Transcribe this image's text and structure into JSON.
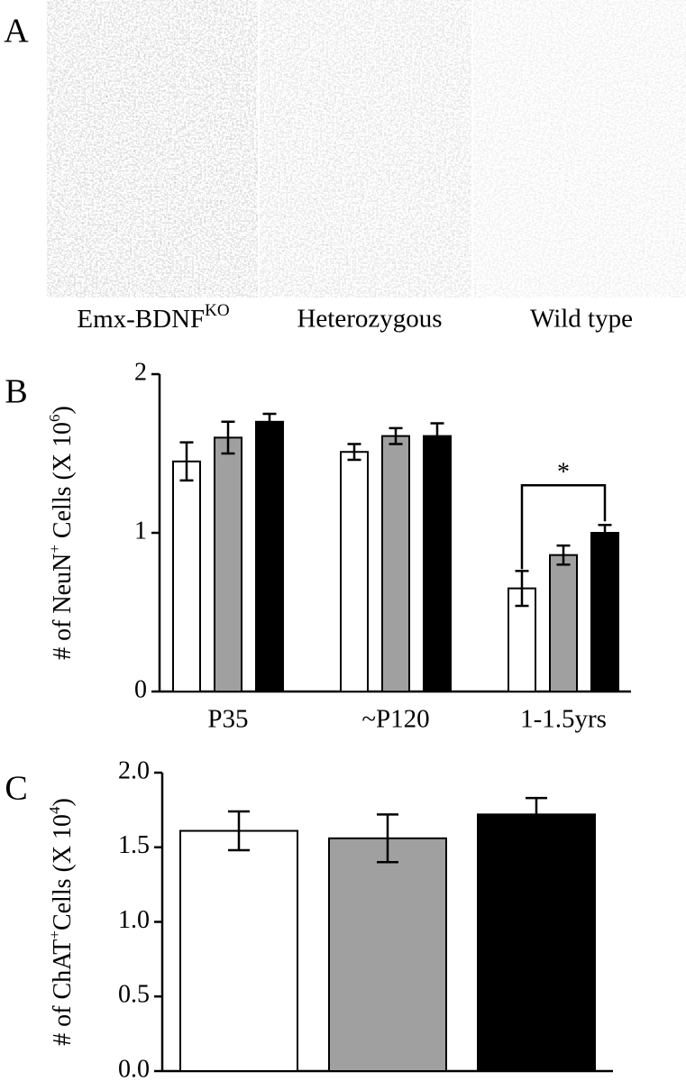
{
  "panel_letters": [
    "A",
    "B",
    "C"
  ],
  "panel_a": {
    "labels": [
      [
        "Emx-BDNF",
        "KO"
      ],
      [
        "Heterozygous"
      ],
      [
        "Wild type"
      ]
    ]
  },
  "chart_data": [
    {
      "type": "bar",
      "ylabel": [
        "# of NeuN",
        "+",
        " Cells (X 10",
        "6",
        ")"
      ],
      "categories": [
        "P35",
        "~P120",
        "1-1.5yrs"
      ],
      "series": [
        {
          "color": "#ffffff",
          "values": [
            1.45,
            1.51,
            0.65
          ],
          "errors": [
            0.12,
            0.05,
            0.11
          ]
        },
        {
          "color": "#a0a0a0",
          "values": [
            1.6,
            1.61,
            0.86
          ],
          "errors": [
            0.1,
            0.05,
            0.06
          ]
        },
        {
          "color": "#000000",
          "values": [
            1.7,
            1.61,
            1.0
          ],
          "errors": [
            0.05,
            0.08,
            0.05
          ]
        }
      ],
      "ylim": [
        0,
        2
      ],
      "yticks": [
        0,
        1,
        2
      ],
      "annotation": "*"
    },
    {
      "type": "bar",
      "ylabel": [
        "# of ChAT",
        "+",
        "Cells (X 10",
        "4",
        ")"
      ],
      "categories": [
        null,
        null,
        null
      ],
      "values": [
        1.61,
        1.56,
        1.72
      ],
      "errors": [
        0.13,
        0.16,
        0.11
      ],
      "colors": [
        "#ffffff",
        "#a0a0a0",
        "#000000"
      ],
      "ylim": [
        0,
        2
      ],
      "yticks": [
        {
          "value": 0,
          "label": "0.0"
        },
        0.5,
        {
          "value": 1,
          "label": "1.0"
        },
        1.5,
        {
          "value": 2,
          "label": "2.0"
        }
      ]
    }
  ]
}
